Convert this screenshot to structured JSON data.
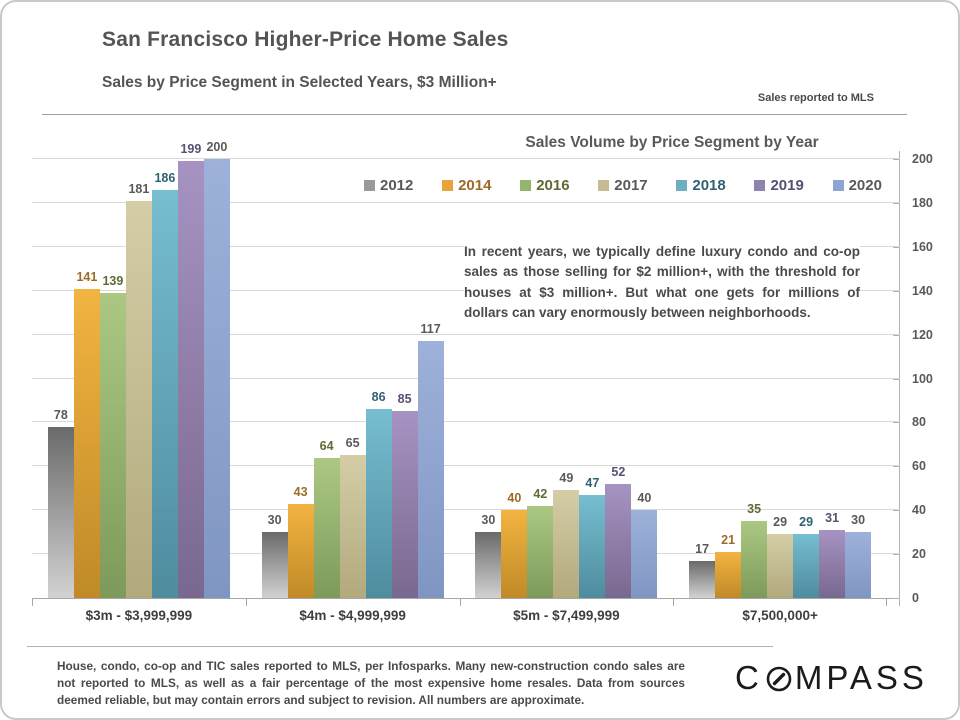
{
  "slide": {
    "title": "San Francisco Higher-Price Home Sales",
    "subtitle": "Sales by Price Segment in Selected Years, $3 Million+",
    "mls_note": "Sales reported to MLS",
    "footnote": "House, condo, co-op and TIC sales reported to MLS, per Infosparks. Many new-construction condo sales are not reported to MLS, as well as a fair percentage of the most expensive home resales. Data from sources deemed reliable, but may contain errors and subject to revision.  All numbers are approximate.",
    "logo_left": "C",
    "logo_right": "MPASS"
  },
  "chart_data": {
    "type": "bar",
    "title": "Sales Volume by Price Segment by Year",
    "annotation": "In recent years, we typically define luxury condo and co-op sales as those selling for $2 million+, with the threshold for houses at $3 million+. But what one gets for millions of dollars can vary enormously between neighborhoods.",
    "categories": [
      "$3m - $3,999,999",
      "$4m - $4,999,999",
      "$5m - $7,499,999",
      "$7,500,000+"
    ],
    "series": [
      {
        "name": "2012",
        "values": [
          78,
          30,
          30,
          17
        ],
        "color_top": "#6a6a6a",
        "color_bottom": "#d2d2d2",
        "label_color": "#595959",
        "legend_color": "#9a9a9a"
      },
      {
        "name": "2014",
        "values": [
          141,
          43,
          40,
          21
        ],
        "color_top": "#F2B441",
        "color_bottom": "#C08A28",
        "label_color": "#9C6B28",
        "legend_color": "#E8A33D"
      },
      {
        "name": "2016",
        "values": [
          139,
          64,
          42,
          35
        ],
        "color_top": "#ABC883",
        "color_bottom": "#7E9A5A",
        "label_color": "#5E6B33",
        "legend_color": "#94B56C"
      },
      {
        "name": "2017",
        "values": [
          181,
          65,
          49,
          29
        ],
        "color_top": "#D4CDA6",
        "color_bottom": "#B2A97D",
        "label_color": "#595959",
        "legend_color": "#C5BC92"
      },
      {
        "name": "2018",
        "values": [
          186,
          86,
          47,
          29
        ],
        "color_top": "#76BED0",
        "color_bottom": "#4E8C9E",
        "label_color": "#2F6272",
        "legend_color": "#6FAEC1"
      },
      {
        "name": "2019",
        "values": [
          199,
          85,
          52,
          31
        ],
        "color_top": "#A693C2",
        "color_bottom": "#79688F",
        "label_color": "#584F73",
        "legend_color": "#9282AE"
      },
      {
        "name": "2020",
        "values": [
          200,
          117,
          40,
          30
        ],
        "color_top": "#9DB1DA",
        "color_bottom": "#8096C2",
        "label_color": "#595959",
        "legend_color": "#8FA4CE"
      }
    ],
    "ylim": [
      0,
      200
    ],
    "yticks": [
      0,
      20,
      40,
      60,
      80,
      100,
      120,
      140,
      160,
      180,
      200
    ],
    "grid": true,
    "legend_position": "top-inside",
    "value_labels": true
  }
}
